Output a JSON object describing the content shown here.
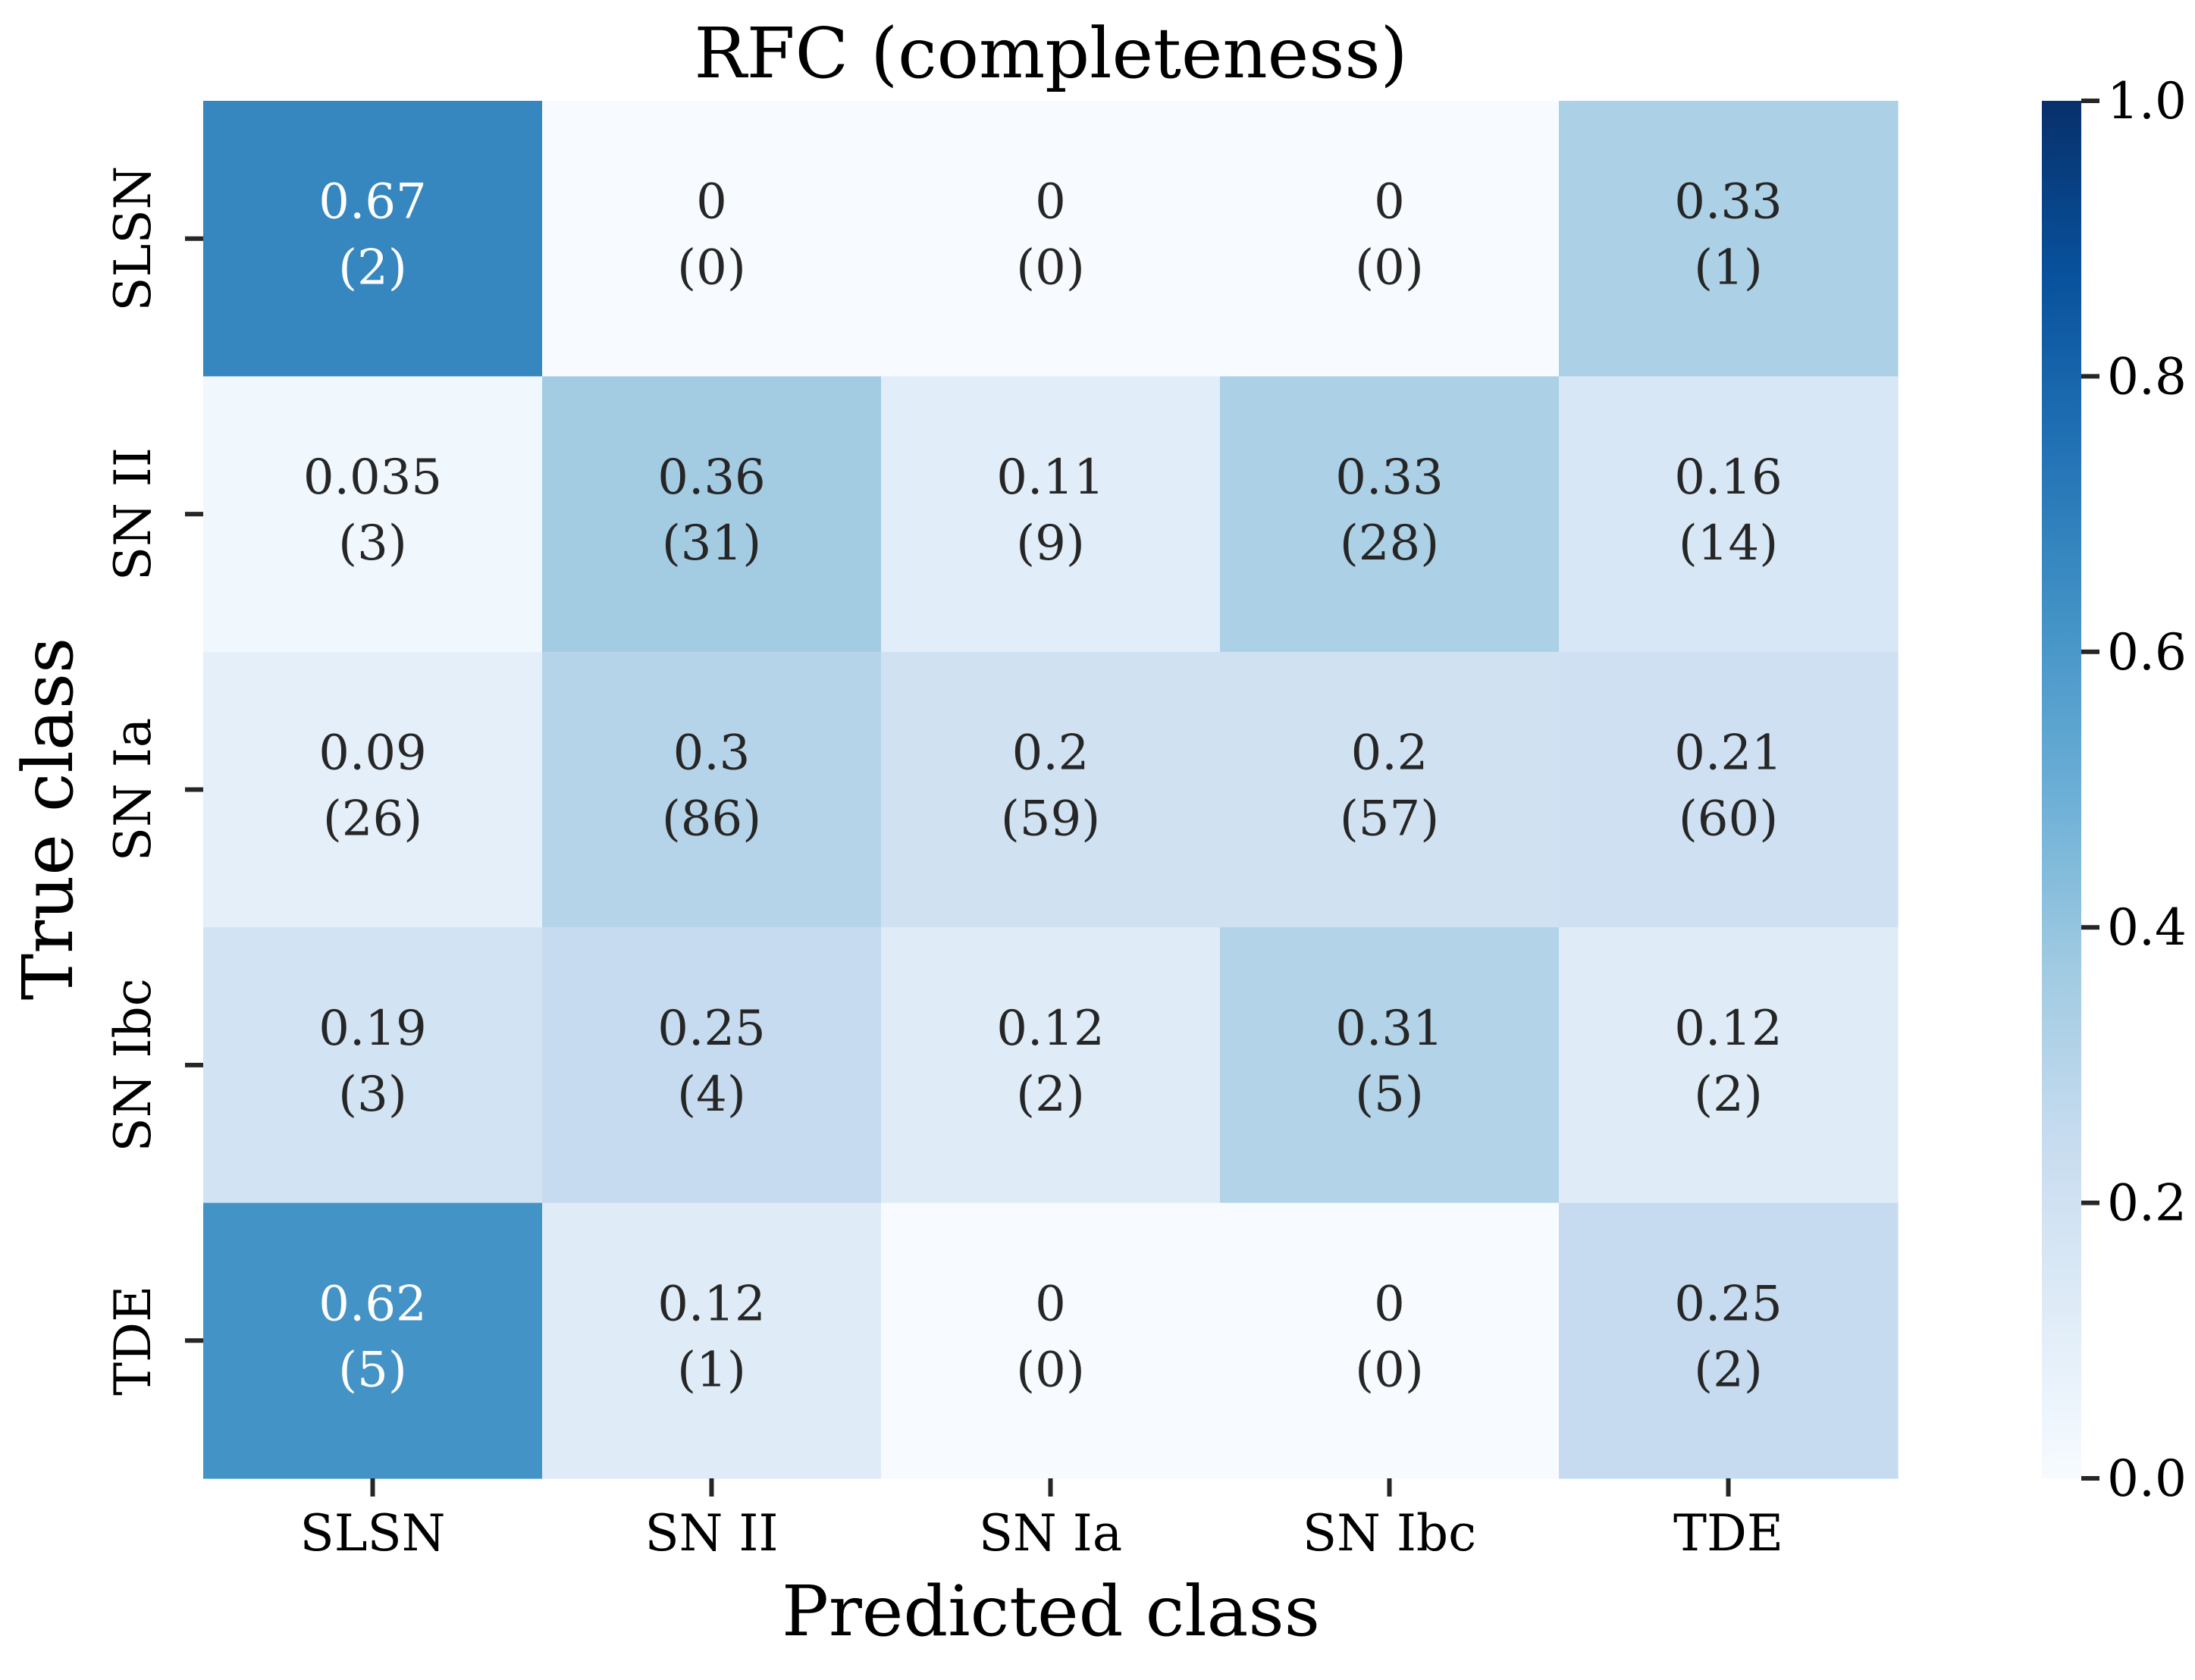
{
  "chart_data": {
    "type": "heatmap",
    "title": "RFC (completeness)",
    "xlabel": "Predicted class",
    "ylabel": "True class",
    "x_categories": [
      "SLSN",
      "SN II",
      "SN Ia",
      "SN Ibc",
      "TDE"
    ],
    "y_categories": [
      "SLSN",
      "SN II",
      "SN Ia",
      "SN Ibc",
      "TDE"
    ],
    "cell_labels": [
      [
        "0.67",
        "0",
        "0",
        "0",
        "0.33"
      ],
      [
        "0.035",
        "0.36",
        "0.11",
        "0.33",
        "0.16"
      ],
      [
        "0.09",
        "0.3",
        "0.2",
        "0.2",
        "0.21"
      ],
      [
        "0.19",
        "0.25",
        "0.12",
        "0.31",
        "0.12"
      ],
      [
        "0.62",
        "0.12",
        "0",
        "0",
        "0.25"
      ]
    ],
    "counts": [
      [
        "(2)",
        "(0)",
        "(0)",
        "(0)",
        "(1)"
      ],
      [
        "(3)",
        "(31)",
        "(9)",
        "(28)",
        "(14)"
      ],
      [
        "(26)",
        "(86)",
        "(59)",
        "(57)",
        "(60)"
      ],
      [
        "(3)",
        "(4)",
        "(2)",
        "(5)",
        "(2)"
      ],
      [
        "(5)",
        "(1)",
        "(0)",
        "(0)",
        "(2)"
      ]
    ],
    "values": [
      [
        0.67,
        0,
        0,
        0,
        0.33
      ],
      [
        0.035,
        0.36,
        0.11,
        0.33,
        0.16
      ],
      [
        0.09,
        0.3,
        0.2,
        0.2,
        0.21
      ],
      [
        0.19,
        0.25,
        0.12,
        0.31,
        0.12
      ],
      [
        0.62,
        0.12,
        0,
        0,
        0.25
      ]
    ],
    "colorbar": {
      "range": [
        0,
        1
      ],
      "ticks": [
        "0.0",
        "0.2",
        "0.4",
        "0.6",
        "0.8",
        "1.0"
      ],
      "colormap": "Blues"
    },
    "colors": {
      "text_dark": "#262626",
      "text_light": "#ffffff"
    }
  }
}
